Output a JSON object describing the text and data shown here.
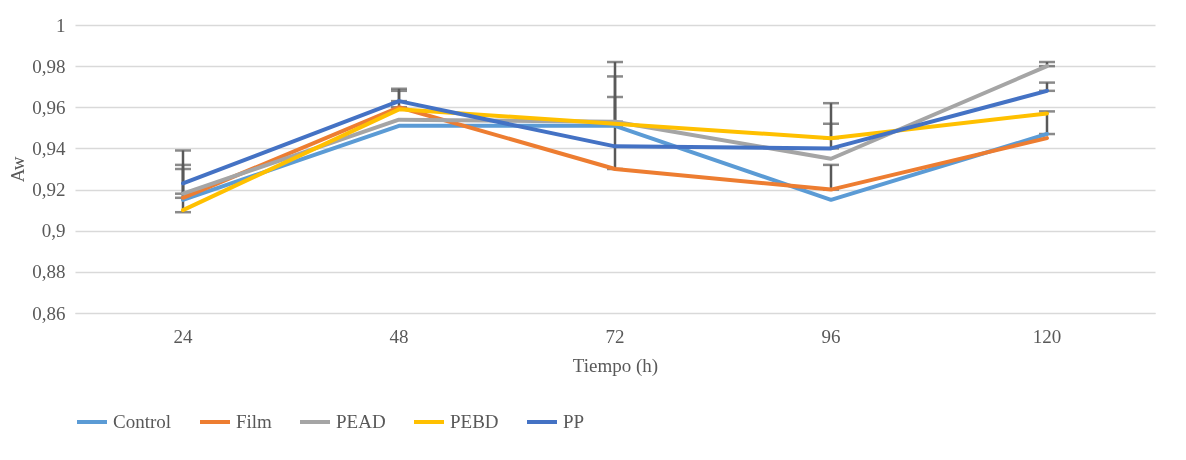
{
  "chart_data": {
    "type": "line",
    "xlabel": "Tiempo (h)",
    "ylabel": "Aw",
    "categories": [
      "24",
      "48",
      "72",
      "96",
      "120"
    ],
    "series": [
      {
        "name": "Control",
        "color": "#5b9bd5",
        "values": [
          0.915,
          0.951,
          0.951,
          0.915,
          0.947
        ],
        "errors": [
          null,
          null,
          [
            0.951,
            0.965
          ],
          null,
          [
            0.947,
            0.958
          ]
        ]
      },
      {
        "name": "Film",
        "color": "#ed7d31",
        "values": [
          0.916,
          0.96,
          0.93,
          0.92,
          0.945
        ],
        "errors": [
          [
            0.916,
            0.93
          ],
          [
            0.96,
            0.968
          ],
          [
            0.93,
            0.952
          ],
          [
            0.92,
            0.932
          ],
          null
        ]
      },
      {
        "name": "PEAD",
        "color": "#a5a5a5",
        "values": [
          0.918,
          0.954,
          0.953,
          0.935,
          0.98
        ],
        "errors": [
          [
            0.918,
            0.932
          ],
          null,
          [
            0.953,
            0.975
          ],
          null,
          [
            0.98,
            0.982
          ]
        ]
      },
      {
        "name": "PEBD",
        "color": "#ffc000",
        "values": [
          0.91,
          0.959,
          0.952,
          0.945,
          0.957
        ],
        "errors": [
          null,
          null,
          [
            0.952,
            0.982
          ],
          [
            0.945,
            0.962
          ],
          null
        ]
      },
      {
        "name": "PP",
        "color": "#4472c4",
        "values": [
          0.923,
          0.963,
          0.941,
          0.94,
          0.968
        ],
        "errors": [
          [
            0.909,
            0.939
          ],
          [
            0.963,
            0.969
          ],
          null,
          [
            0.94,
            0.952
          ],
          [
            0.968,
            0.972
          ]
        ]
      }
    ],
    "ylim": [
      0.86,
      1
    ],
    "yticks": [
      {
        "value": 0.86,
        "label": "0,86"
      },
      {
        "value": 0.88,
        "label": "0,88"
      },
      {
        "value": 0.9,
        "label": "0,9"
      },
      {
        "value": 0.92,
        "label": "0,92"
      },
      {
        "value": 0.94,
        "label": "0,94"
      },
      {
        "value": 0.96,
        "label": "0,96"
      },
      {
        "value": 0.98,
        "label": "0,98"
      },
      1
    ],
    "grid": "y",
    "legend": "bottom",
    "marker": "none",
    "line_style": "solid"
  }
}
